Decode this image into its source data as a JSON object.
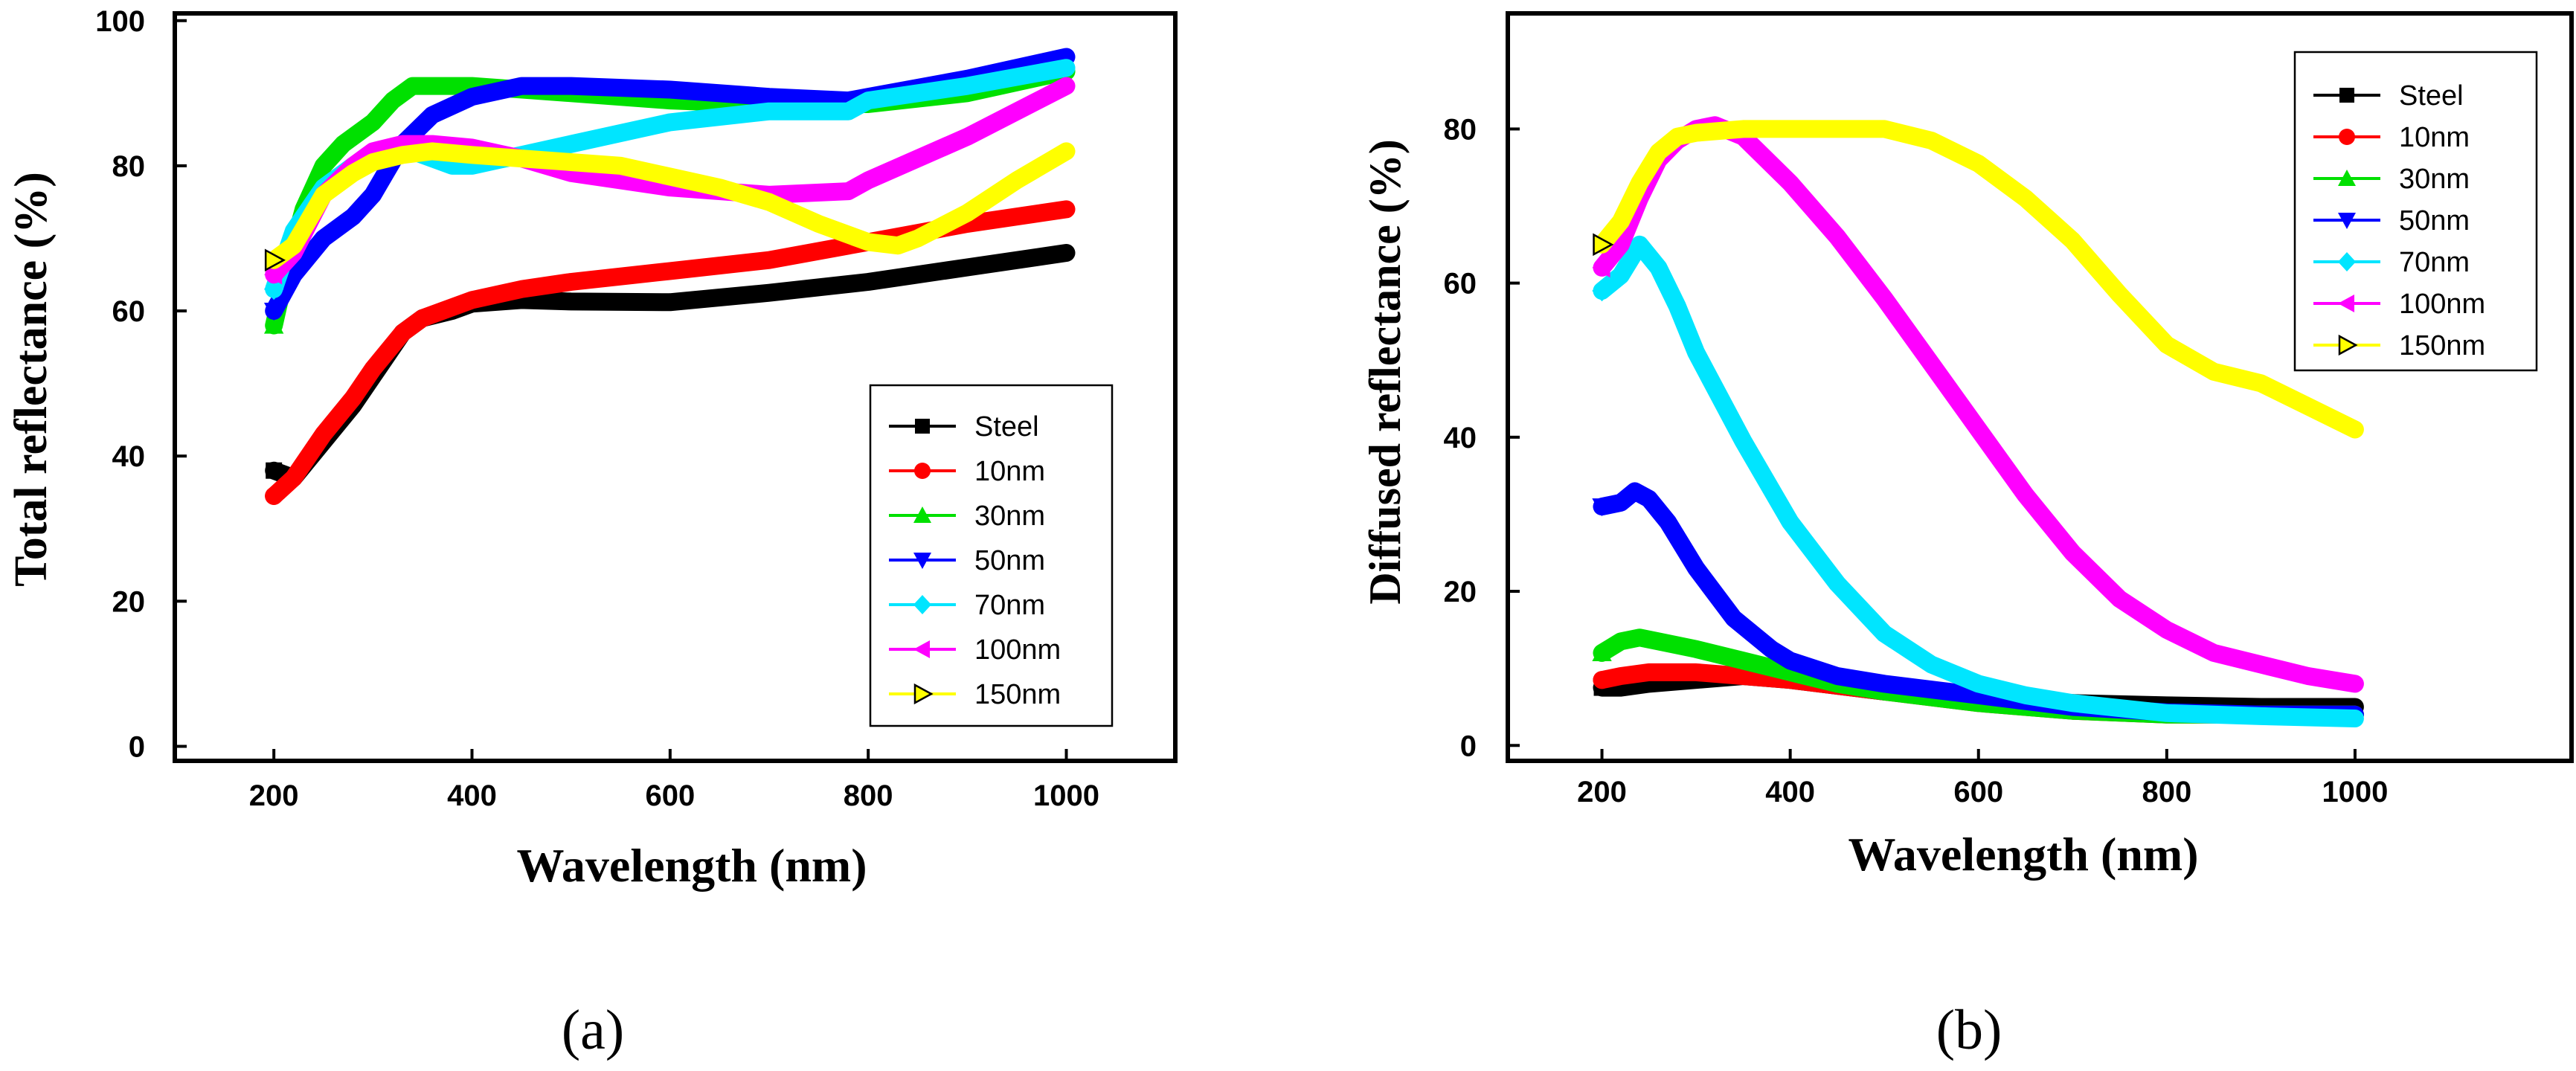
{
  "chart_data": [
    {
      "type": "line",
      "panel_label": "(a)",
      "xlabel": "Wavelength (nm)",
      "ylabel": "Total reflectance (%)",
      "xlim": [
        100,
        1110
      ],
      "ylim": [
        -2,
        101
      ],
      "xticks": [
        200,
        400,
        600,
        800,
        1000
      ],
      "yticks": [
        0,
        20,
        40,
        60,
        80,
        100
      ],
      "legend_position": "bottom-right",
      "series": [
        {
          "name": "Steel",
          "color": "#000000",
          "marker": "square",
          "x": [
            200,
            220,
            250,
            280,
            300,
            330,
            350,
            380,
            400,
            450,
            500,
            600,
            700,
            800,
            900,
            1000
          ],
          "y": [
            38,
            37,
            42,
            47,
            51,
            57,
            59,
            60,
            61,
            61.5,
            61.3,
            61.2,
            62.5,
            64,
            66,
            68
          ]
        },
        {
          "name": "10nm",
          "color": "#ff0000",
          "marker": "circle",
          "x": [
            200,
            220,
            250,
            280,
            300,
            330,
            350,
            400,
            450,
            500,
            600,
            700,
            800,
            900,
            1000
          ],
          "y": [
            34.5,
            37,
            43,
            48,
            52,
            57,
            59,
            61.5,
            63,
            64,
            65.5,
            67,
            69.5,
            72,
            74
          ]
        },
        {
          "name": "30nm",
          "color": "#00e000",
          "marker": "triangle-up",
          "x": [
            200,
            210,
            230,
            250,
            270,
            300,
            320,
            340,
            360,
            400,
            500,
            600,
            700,
            800,
            900,
            1000
          ],
          "y": [
            58,
            64,
            74,
            80,
            83,
            86,
            89,
            91,
            91,
            91,
            90,
            89,
            88.5,
            88.5,
            90,
            93
          ]
        },
        {
          "name": "50nm",
          "color": "#0000ff",
          "marker": "triangle-down",
          "x": [
            200,
            220,
            250,
            280,
            300,
            330,
            360,
            400,
            450,
            500,
            600,
            700,
            780,
            800,
            900,
            1000
          ],
          "y": [
            60,
            65,
            70,
            73,
            76,
            83,
            87,
            89.5,
            91,
            91,
            90.5,
            89.5,
            89,
            89.5,
            92,
            95
          ]
        },
        {
          "name": "70nm",
          "color": "#00e5ff",
          "marker": "diamond",
          "x": [
            200,
            220,
            250,
            280,
            300,
            340,
            380,
            400,
            450,
            500,
            600,
            700,
            780,
            800,
            900,
            1000
          ],
          "y": [
            63,
            71,
            77,
            80,
            81,
            82,
            80,
            80,
            81.5,
            83,
            86,
            87.5,
            87.5,
            89,
            91,
            93.5
          ]
        },
        {
          "name": "100nm",
          "color": "#ff00ff",
          "marker": "triangle-left",
          "x": [
            200,
            220,
            250,
            280,
            300,
            330,
            360,
            400,
            450,
            500,
            600,
            700,
            780,
            800,
            900,
            1000
          ],
          "y": [
            65,
            68,
            76,
            80,
            82,
            83,
            83,
            82.5,
            81,
            79,
            77,
            76,
            76.5,
            78,
            84,
            91
          ]
        },
        {
          "name": "150nm",
          "color": "#ffff00",
          "marker": "triangle-right",
          "x": [
            200,
            220,
            250,
            280,
            300,
            330,
            360,
            400,
            450,
            500,
            550,
            600,
            650,
            700,
            750,
            800,
            830,
            850,
            900,
            950,
            1000
          ],
          "y": [
            67,
            69,
            76,
            79,
            80.5,
            81.5,
            82,
            81.5,
            81,
            80.5,
            80,
            78.5,
            77,
            75,
            72,
            69.5,
            69,
            70,
            73.5,
            78,
            82
          ]
        }
      ]
    },
    {
      "type": "line",
      "panel_label": "(b)",
      "xlabel": "Wavelength (nm)",
      "ylabel": "Diffused reflectance (%)",
      "xlim": [
        100,
        1230
      ],
      "ylim": [
        -2,
        95
      ],
      "xticks": [
        200,
        400,
        600,
        800,
        1000
      ],
      "yticks": [
        0,
        20,
        40,
        60,
        80
      ],
      "legend_position": "top-right",
      "series": [
        {
          "name": "Steel",
          "color": "#000000",
          "marker": "square",
          "x": [
            200,
            220,
            250,
            300,
            350,
            400,
            500,
            600,
            700,
            800,
            900,
            1000
          ],
          "y": [
            7.5,
            7.5,
            8,
            8.5,
            9,
            8.5,
            7,
            6,
            5.5,
            5.2,
            5,
            5
          ]
        },
        {
          "name": "10nm",
          "color": "#ff0000",
          "marker": "circle",
          "x": [
            200,
            220,
            250,
            280,
            300,
            350,
            400,
            500,
            600,
            700,
            800,
            900,
            1000
          ],
          "y": [
            8.5,
            9,
            9.5,
            9.5,
            9.5,
            9,
            8.5,
            7,
            5.5,
            4.5,
            4,
            4,
            4
          ]
        },
        {
          "name": "30nm",
          "color": "#00e000",
          "marker": "triangle-up",
          "x": [
            200,
            220,
            240,
            260,
            300,
            350,
            400,
            450,
            500,
            600,
            700,
            800,
            900,
            1000
          ],
          "y": [
            12,
            13.5,
            14,
            13.5,
            12.5,
            11,
            9.5,
            8,
            7,
            5.5,
            4.5,
            4,
            4,
            4
          ]
        },
        {
          "name": "50nm",
          "color": "#0000ff",
          "marker": "triangle-down",
          "x": [
            200,
            220,
            235,
            250,
            270,
            300,
            340,
            380,
            400,
            450,
            500,
            600,
            700,
            800,
            900,
            1000
          ],
          "y": [
            31,
            31.5,
            33,
            32,
            29,
            23,
            16.5,
            12.5,
            11,
            9,
            8,
            6.5,
            5,
            4.3,
            4,
            4
          ]
        },
        {
          "name": "70nm",
          "color": "#00e5ff",
          "marker": "diamond",
          "x": [
            200,
            220,
            240,
            260,
            280,
            300,
            350,
            400,
            450,
            500,
            550,
            600,
            650,
            700,
            800,
            900,
            1000
          ],
          "y": [
            59,
            61,
            65,
            62,
            57,
            51,
            39.5,
            29,
            21,
            14.5,
            10.5,
            8,
            6.5,
            5.5,
            4.2,
            3.8,
            3.5
          ]
        },
        {
          "name": "100nm",
          "color": "#ff00ff",
          "marker": "triangle-left",
          "x": [
            200,
            220,
            240,
            260,
            280,
            300,
            320,
            350,
            400,
            450,
            500,
            550,
            600,
            650,
            700,
            750,
            800,
            850,
            900,
            950,
            1000
          ],
          "y": [
            62,
            65,
            71,
            76,
            78.5,
            80,
            80.5,
            79,
            73,
            66,
            58,
            49.5,
            41,
            32.5,
            25,
            19,
            15,
            12,
            10.5,
            9,
            8
          ]
        },
        {
          "name": "150nm",
          "color": "#ffff00",
          "marker": "triangle-right",
          "x": [
            200,
            220,
            240,
            260,
            280,
            300,
            350,
            400,
            450,
            500,
            550,
            600,
            650,
            700,
            750,
            800,
            850,
            900,
            950,
            1000
          ],
          "y": [
            65,
            68,
            73,
            77,
            79,
            79.5,
            80,
            80,
            80,
            80,
            78.5,
            75.5,
            71,
            65.5,
            58.5,
            52,
            48.5,
            47,
            44,
            41
          ]
        }
      ]
    }
  ]
}
